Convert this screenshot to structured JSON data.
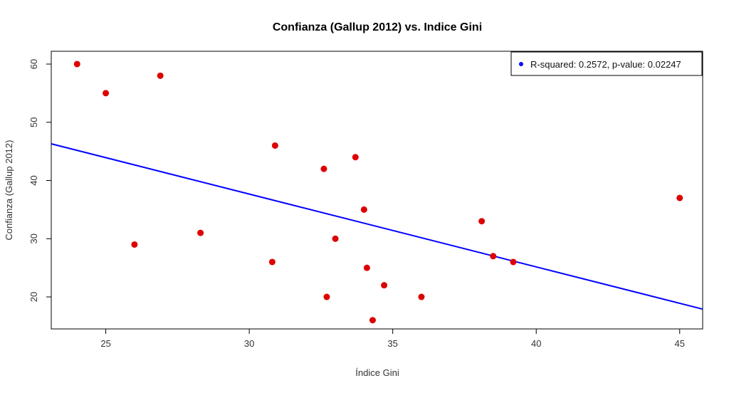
{
  "chart_data": {
    "type": "scatter",
    "title": "Confianza (Gallup 2012) vs. Indice Gini",
    "xlabel": "Índice Gini",
    "ylabel": "Confianza (Gallup 2012)",
    "xlim": [
      23.1,
      45.8
    ],
    "ylim": [
      14.5,
      62.2
    ],
    "x_ticks": [
      25,
      30,
      35,
      40,
      45
    ],
    "y_ticks": [
      20,
      30,
      40,
      50,
      60
    ],
    "grid": false,
    "legend": {
      "position": "top-right",
      "entries": [
        "R-squared:  0.2572, p-value: 0.02247"
      ],
      "marker_color": "#0000ff"
    },
    "series": [
      {
        "color": "#dd0000",
        "points": [
          {
            "x": 24.0,
            "y": 60
          },
          {
            "x": 25.0,
            "y": 55
          },
          {
            "x": 26.9,
            "y": 58
          },
          {
            "x": 26.0,
            "y": 29
          },
          {
            "x": 28.3,
            "y": 31
          },
          {
            "x": 30.8,
            "y": 26
          },
          {
            "x": 30.9,
            "y": 46
          },
          {
            "x": 32.6,
            "y": 42
          },
          {
            "x": 32.7,
            "y": 20
          },
          {
            "x": 33.0,
            "y": 30
          },
          {
            "x": 33.7,
            "y": 44
          },
          {
            "x": 34.0,
            "y": 35
          },
          {
            "x": 34.1,
            "y": 25
          },
          {
            "x": 34.3,
            "y": 16
          },
          {
            "x": 34.7,
            "y": 22
          },
          {
            "x": 36.0,
            "y": 20
          },
          {
            "x": 38.1,
            "y": 33
          },
          {
            "x": 38.5,
            "y": 27
          },
          {
            "x": 39.2,
            "y": 26
          },
          {
            "x": 45.0,
            "y": 37
          }
        ]
      }
    ],
    "regression_line": {
      "color": "#0000ff",
      "x": [
        23.1,
        45.8
      ],
      "y": [
        46.3,
        17.9
      ]
    }
  }
}
